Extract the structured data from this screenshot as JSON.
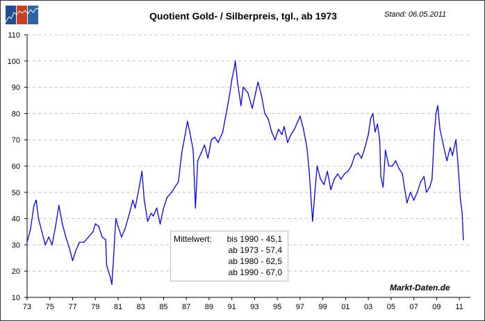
{
  "title": "Quotient Gold- / Silberpreis, tgl., ab 1973",
  "stand": "Stand: 06.05.2011",
  "brand": "Markt-Daten.de",
  "colors": {
    "line": "#0000ff",
    "grid": "#c0c0c0",
    "logo": [
      "#1f4e96",
      "#c8401f",
      "#2f64a8"
    ]
  },
  "legend": {
    "label": "Mittelwert:",
    "rows": [
      "bis 1990 - 45,1",
      "ab 1973 - 57,4",
      "ab 1980 - 62,5",
      "ab 1990 - 67,0"
    ]
  },
  "chart_data": {
    "type": "line",
    "title": "Quotient Gold- / Silberpreis, tgl., ab 1973",
    "xlabel": "",
    "ylabel": "",
    "xlim": [
      1973,
      2012
    ],
    "ylim": [
      10,
      110
    ],
    "grid": true,
    "y_ticks": [
      "10",
      "20",
      "30",
      "40",
      "50",
      "60",
      "70",
      "80",
      "90",
      "100",
      "110"
    ],
    "x_ticks": [
      "73",
      "75",
      "77",
      "79",
      "81",
      "83",
      "85",
      "87",
      "89",
      "91",
      "93",
      "95",
      "97",
      "99",
      "01",
      "03",
      "05",
      "07",
      "09",
      "11"
    ],
    "series": [
      {
        "x": [
          1973.0,
          1973.3,
          1973.6,
          1973.8,
          1974.0,
          1974.3,
          1974.6,
          1974.9,
          1975.2,
          1975.5,
          1975.8,
          1976.1,
          1976.4,
          1976.7,
          1977.0,
          1977.3,
          1977.6,
          1978.0,
          1978.4,
          1978.8,
          1979.0,
          1979.3,
          1979.6,
          1979.9,
          1980.0,
          1980.3,
          1980.45,
          1980.6,
          1980.8,
          1981.0,
          1981.3,
          1981.6,
          1982.0,
          1982.3,
          1982.5,
          1982.9,
          1983.1,
          1983.3,
          1983.6,
          1983.9,
          1984.1,
          1984.4,
          1984.7,
          1985.0,
          1985.3,
          1985.7,
          1986.0,
          1986.3,
          1986.6,
          1986.9,
          1987.1,
          1987.3,
          1987.6,
          1987.8,
          1988.0,
          1988.3,
          1988.6,
          1988.9,
          1989.2,
          1989.5,
          1989.8,
          1990.2,
          1990.5,
          1990.8,
          1991.0,
          1991.2,
          1991.3,
          1991.5,
          1991.8,
          1992.0,
          1992.4,
          1992.8,
          1993.1,
          1993.3,
          1993.6,
          1993.9,
          1994.2,
          1994.5,
          1994.8,
          1995.1,
          1995.4,
          1995.6,
          1995.9,
          1996.2,
          1996.5,
          1996.8,
          1997.0,
          1997.3,
          1997.6,
          1997.8,
          1998.0,
          1998.1,
          1998.3,
          1998.5,
          1998.8,
          1999.1,
          1999.4,
          1999.7,
          2000.0,
          2000.3,
          2000.6,
          2000.9,
          2001.2,
          2001.5,
          2001.8,
          2002.1,
          2002.4,
          2002.7,
          2003.0,
          2003.2,
          2003.4,
          2003.6,
          2003.8,
          2004.0,
          2004.1,
          2004.3,
          2004.5,
          2004.8,
          2005.1,
          2005.4,
          2005.7,
          2006.0,
          2006.2,
          2006.4,
          2006.7,
          2007.0,
          2007.3,
          2007.6,
          2007.9,
          2008.1,
          2008.4,
          2008.6,
          2008.8,
          2008.95,
          2009.1,
          2009.3,
          2009.6,
          2009.9,
          2010.2,
          2010.4,
          2010.7,
          2010.9,
          2011.1,
          2011.25,
          2011.35
        ],
        "y": [
          31,
          36,
          45,
          47,
          40,
          35,
          30,
          33,
          30,
          37,
          45,
          38,
          33,
          29,
          24,
          28,
          31,
          31,
          33,
          35,
          38,
          37,
          33,
          32,
          22,
          18,
          15,
          25,
          40,
          37,
          33,
          36,
          42,
          47,
          44,
          53,
          58,
          47,
          39,
          42,
          41,
          44,
          38,
          44,
          48,
          50,
          52,
          54,
          65,
          72,
          77,
          73,
          66,
          44,
          62,
          65,
          68,
          63,
          70,
          71,
          69,
          73,
          80,
          87,
          93,
          97,
          100,
          92,
          83,
          90,
          88,
          82,
          88,
          92,
          87,
          80,
          78,
          73,
          70,
          74,
          72,
          75,
          69,
          72,
          74,
          77,
          79,
          74,
          67,
          58,
          45,
          39,
          50,
          60,
          55,
          53,
          58,
          51,
          55,
          57,
          55,
          57,
          58,
          60,
          64,
          65,
          63,
          67,
          72,
          78,
          80,
          73,
          76,
          70,
          56,
          52,
          66,
          60,
          60,
          62,
          59,
          57,
          51,
          46,
          50,
          47,
          50,
          54,
          56,
          50,
          52,
          55,
          72,
          80,
          83,
          74,
          68,
          62,
          67,
          64,
          70,
          60,
          47,
          42,
          32
        ]
      }
    ]
  }
}
